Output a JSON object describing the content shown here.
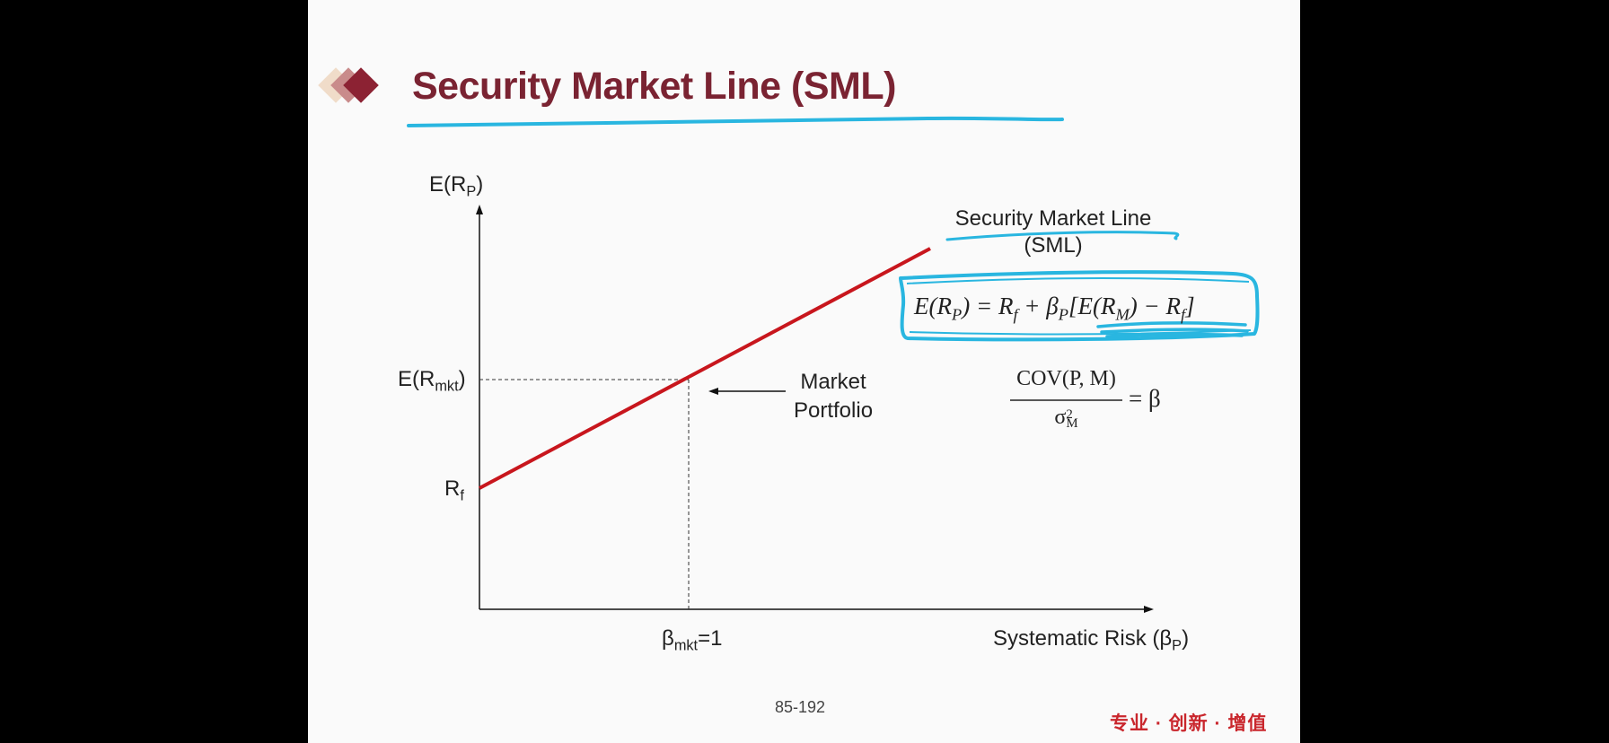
{
  "slide": {
    "title": "Security Market Line (SML)",
    "page_number": "85-192",
    "brand_text": "专业 · 创新 · 增值",
    "colors": {
      "title": "#7a2332",
      "line": "#c8161d",
      "annotation": "#29b6e0",
      "brand": "#c9262c"
    }
  },
  "diagram": {
    "y_axis": {
      "label_main": "E(R",
      "label_sub": "P",
      "label_close": ")"
    },
    "x_axis": {
      "label_main": "Systematic Risk (β",
      "label_sub": "P",
      "label_close": ")"
    },
    "y_ticks": {
      "market": {
        "main": "E(R",
        "sub": "mkt",
        "close": ")"
      },
      "rf": {
        "main": "R",
        "sub": "f"
      }
    },
    "x_ticks": {
      "beta": {
        "main": "β",
        "sub": "mkt",
        "close": "=1"
      }
    },
    "line_label": {
      "line1": "Security Market Line",
      "line2": "(SML)"
    },
    "callout": {
      "line1": "Market",
      "line2": "Portfolio"
    },
    "formula_sml": "E(R_P) = R_f + β_P[E(R_M) − R_f]",
    "formula_beta": {
      "numerator": "COV(P, M)",
      "denominator": "σ_M^2",
      "rhs": "= β"
    }
  }
}
